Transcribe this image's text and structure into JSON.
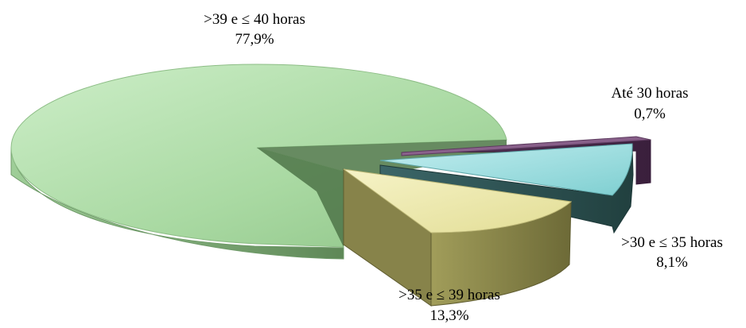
{
  "chart_data": {
    "type": "pie",
    "subtype": "3d-exploded",
    "title": "",
    "slices": [
      {
        "label": ">39 e ≤ 40 horas",
        "value_label": "77,9%",
        "value": 77.9,
        "color": "#a9d9a2"
      },
      {
        "label": "Até 30 horas",
        "value_label": "0,7%",
        "value": 0.7,
        "color": "#7a4f7c"
      },
      {
        "label": ">30 e ≤  35 horas",
        "value_label": "8,1%",
        "value": 8.1,
        "color": "#8fd6d8"
      },
      {
        "label": ">35 e ≤  39 horas",
        "value_label": "13,3%",
        "value": 13.3,
        "color": "#eeeaa3"
      }
    ],
    "legend": "none"
  }
}
